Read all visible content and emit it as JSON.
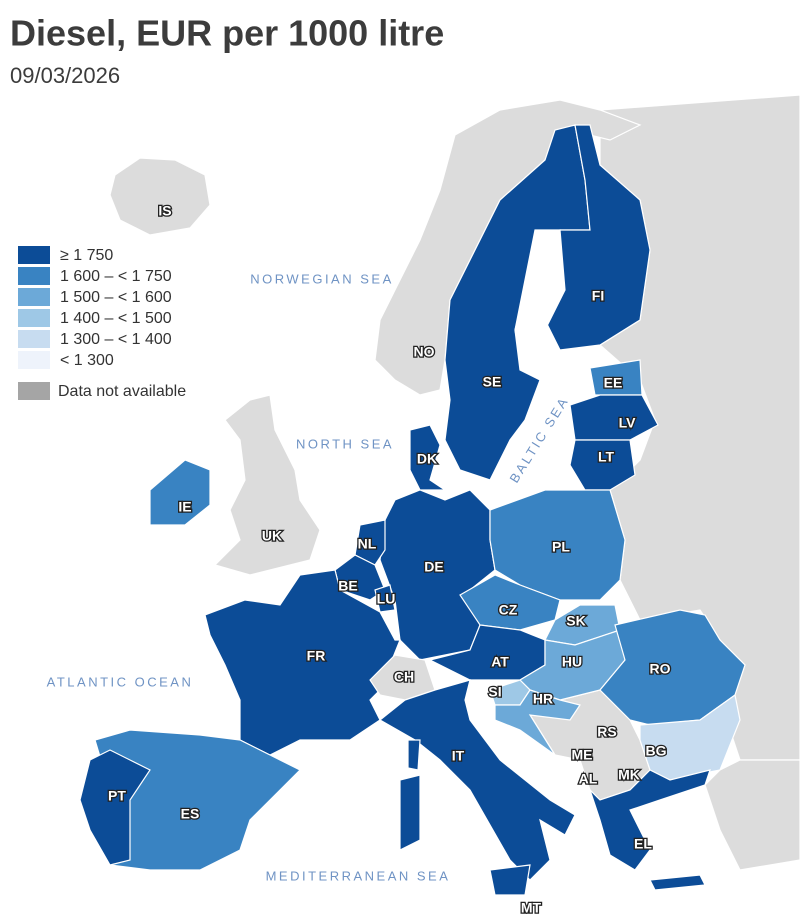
{
  "title": "Diesel, EUR per 1000 litre",
  "date": "09/03/2026",
  "legend": {
    "items": [
      {
        "label": "≥ 1 750",
        "color": "#0c4c97"
      },
      {
        "label": "1 600 – < 1 750",
        "color": "#3983c2"
      },
      {
        "label": "1 500 – < 1 600",
        "color": "#6ca9d8"
      },
      {
        "label": "1 400 – < 1 500",
        "color": "#9ec8e6"
      },
      {
        "label": "1 300 – < 1 400",
        "color": "#c7dcf0"
      },
      {
        "label": "< 1 300",
        "color": "#eef3fb"
      },
      {
        "label": "Data not available",
        "color": "#a5a5a5"
      }
    ]
  },
  "seas": [
    "NORWEGIAN SEA",
    "NORTH SEA",
    "BALTIC SEA",
    "ATLANTIC OCEAN",
    "MEDITERRANEAN SEA"
  ],
  "countries": [
    {
      "code": "IS",
      "color": "#dcdcdc"
    },
    {
      "code": "NO",
      "color": "#dcdcdc"
    },
    {
      "code": "SE",
      "color": "#0c4c97"
    },
    {
      "code": "FI",
      "color": "#0c4c97"
    },
    {
      "code": "EE",
      "color": "#3983c2"
    },
    {
      "code": "LV",
      "color": "#0c4c97"
    },
    {
      "code": "LT",
      "color": "#0c4c97"
    },
    {
      "code": "DK",
      "color": "#0c4c97"
    },
    {
      "code": "IE",
      "color": "#3983c2"
    },
    {
      "code": "UK",
      "color": "#dcdcdc"
    },
    {
      "code": "NL",
      "color": "#0c4c97"
    },
    {
      "code": "BE",
      "color": "#0c4c97"
    },
    {
      "code": "LU",
      "color": "#0c4c97"
    },
    {
      "code": "DE",
      "color": "#0c4c97"
    },
    {
      "code": "PL",
      "color": "#3983c2"
    },
    {
      "code": "CZ",
      "color": "#3983c2"
    },
    {
      "code": "SK",
      "color": "#6ca9d8"
    },
    {
      "code": "AT",
      "color": "#0c4c97"
    },
    {
      "code": "HU",
      "color": "#6ca9d8"
    },
    {
      "code": "SI",
      "color": "#9ec8e6"
    },
    {
      "code": "HR",
      "color": "#6ca9d8"
    },
    {
      "code": "RO",
      "color": "#3983c2"
    },
    {
      "code": "BG",
      "color": "#c7dcf0"
    },
    {
      "code": "FR",
      "color": "#0c4c97"
    },
    {
      "code": "CH",
      "color": "#dcdcdc"
    },
    {
      "code": "IT",
      "color": "#0c4c97"
    },
    {
      "code": "ES",
      "color": "#3983c2"
    },
    {
      "code": "PT",
      "color": "#0c4c97"
    },
    {
      "code": "EL",
      "color": "#0c4c97"
    },
    {
      "code": "RS",
      "color": "#dcdcdc"
    },
    {
      "code": "ME",
      "color": "#dcdcdc"
    },
    {
      "code": "AL",
      "color": "#dcdcdc"
    },
    {
      "code": "MK",
      "color": "#dcdcdc"
    },
    {
      "code": "MT",
      "color": "#0c4c97"
    }
  ]
}
